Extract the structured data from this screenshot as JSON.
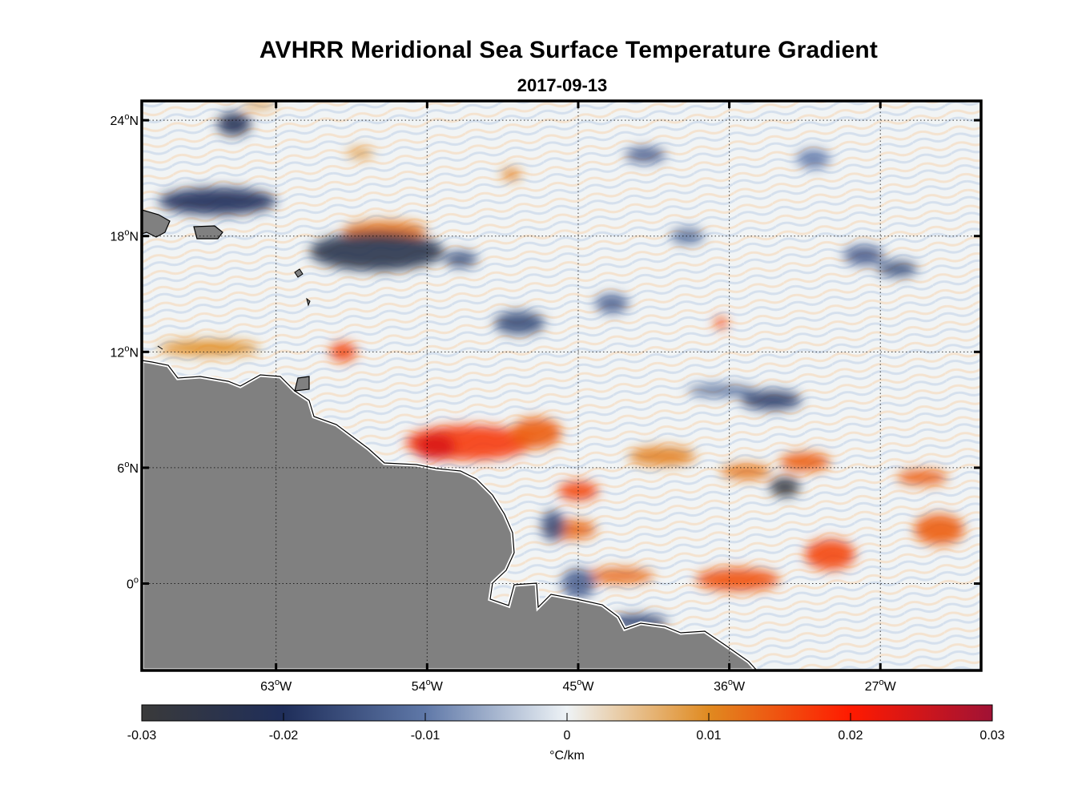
{
  "title": "AVHRR Meridional Sea Surface Temperature Gradient",
  "subtitle": "2017-09-13",
  "map": {
    "lon_range": [
      -71,
      -21
    ],
    "lat_range": [
      -4.5,
      25
    ],
    "lat_ticks": [
      {
        "value": 24,
        "label": "24",
        "hemi": "N"
      },
      {
        "value": 18,
        "label": "18",
        "hemi": "N"
      },
      {
        "value": 12,
        "label": "12",
        "hemi": "N"
      },
      {
        "value": 6,
        "label": "6",
        "hemi": "N"
      },
      {
        "value": 0,
        "label": "0",
        "hemi": ""
      }
    ],
    "lon_ticks": [
      {
        "value": -63,
        "label": "63",
        "hemi": "W"
      },
      {
        "value": -54,
        "label": "54",
        "hemi": "W"
      },
      {
        "value": -45,
        "label": "45",
        "hemi": "W"
      },
      {
        "value": -36,
        "label": "36",
        "hemi": "W"
      },
      {
        "value": -27,
        "label": "27",
        "hemi": "W"
      }
    ],
    "degree_symbol": "o",
    "land_color": "#808080",
    "grid": true
  },
  "colorbar": {
    "min": -0.03,
    "max": 0.03,
    "ticks": [
      "-0.03",
      "-0.02",
      "-0.01",
      "0",
      "0.01",
      "0.02",
      "0.03"
    ],
    "unit_label": "°C/km",
    "colors": [
      "#3a3a3a",
      "#1f2e5a",
      "#5f78a8",
      "#eef3f6",
      "#e08a20",
      "#ff1a00",
      "#a01235"
    ]
  },
  "features": {
    "negative": [
      {
        "lon": -65.5,
        "lat": 23.8,
        "rx": 1.0,
        "ry": 0.6,
        "v": -0.022
      },
      {
        "lon": -66.5,
        "lat": 19.8,
        "rx": 3.5,
        "ry": 0.7,
        "v": -0.02
      },
      {
        "lon": -57.0,
        "lat": 17.2,
        "rx": 4.0,
        "ry": 1.0,
        "v": -0.024
      },
      {
        "lon": -52.0,
        "lat": 16.8,
        "rx": 1.0,
        "ry": 0.4,
        "v": -0.016
      },
      {
        "lon": -48.5,
        "lat": 13.5,
        "rx": 1.5,
        "ry": 0.6,
        "v": -0.016
      },
      {
        "lon": -43.0,
        "lat": 14.5,
        "rx": 1.0,
        "ry": 0.5,
        "v": -0.013
      },
      {
        "lon": -41.0,
        "lat": 22.2,
        "rx": 1.2,
        "ry": 0.4,
        "v": -0.014
      },
      {
        "lon": -33.5,
        "lat": 9.5,
        "rx": 1.8,
        "ry": 0.5,
        "v": -0.018
      },
      {
        "lon": -36.5,
        "lat": 10.0,
        "rx": 2.0,
        "ry": 0.3,
        "v": -0.012
      },
      {
        "lon": -32.7,
        "lat": 5.0,
        "rx": 0.9,
        "ry": 0.5,
        "v": -0.028
      },
      {
        "lon": -26.0,
        "lat": 16.3,
        "rx": 1.2,
        "ry": 0.4,
        "v": -0.016
      },
      {
        "lon": -28.0,
        "lat": 17.0,
        "rx": 1.2,
        "ry": 0.5,
        "v": -0.014
      },
      {
        "lon": -46.5,
        "lat": 3.0,
        "rx": 0.7,
        "ry": 0.8,
        "v": -0.015
      },
      {
        "lon": -45.0,
        "lat": 0.0,
        "rx": 1.0,
        "ry": 0.8,
        "v": -0.013
      },
      {
        "lon": -41.5,
        "lat": -2.0,
        "rx": 1.8,
        "ry": 0.4,
        "v": -0.017
      },
      {
        "lon": -38.5,
        "lat": 18.0,
        "rx": 1.0,
        "ry": 0.4,
        "v": -0.012
      },
      {
        "lon": -31.0,
        "lat": 22.0,
        "rx": 1.0,
        "ry": 0.5,
        "v": -0.01
      }
    ],
    "positive": [
      {
        "lon": -56.5,
        "lat": 18.3,
        "rx": 2.5,
        "ry": 0.5,
        "v": 0.012
      },
      {
        "lon": -67.0,
        "lat": 12.2,
        "rx": 3.0,
        "ry": 0.4,
        "v": 0.01
      },
      {
        "lon": -59.0,
        "lat": 12.0,
        "rx": 0.8,
        "ry": 0.5,
        "v": 0.016
      },
      {
        "lon": -51.5,
        "lat": 7.3,
        "rx": 3.8,
        "ry": 0.9,
        "v": 0.017
      },
      {
        "lon": -53.5,
        "lat": 7.1,
        "rx": 1.2,
        "ry": 0.7,
        "v": 0.024
      },
      {
        "lon": -47.5,
        "lat": 7.8,
        "rx": 1.5,
        "ry": 0.8,
        "v": 0.014
      },
      {
        "lon": -45.0,
        "lat": 4.8,
        "rx": 1.2,
        "ry": 0.5,
        "v": 0.016
      },
      {
        "lon": -45.5,
        "lat": 2.8,
        "rx": 1.6,
        "ry": 0.5,
        "v": 0.013
      },
      {
        "lon": -42.5,
        "lat": 0.4,
        "rx": 2.0,
        "ry": 0.4,
        "v": 0.013
      },
      {
        "lon": -40.0,
        "lat": 6.6,
        "rx": 2.0,
        "ry": 0.5,
        "v": 0.011
      },
      {
        "lon": -35.5,
        "lat": 0.2,
        "rx": 2.5,
        "ry": 0.6,
        "v": 0.015
      },
      {
        "lon": -30.0,
        "lat": 1.5,
        "rx": 1.5,
        "ry": 0.8,
        "v": 0.016
      },
      {
        "lon": -31.5,
        "lat": 6.3,
        "rx": 1.5,
        "ry": 0.5,
        "v": 0.014
      },
      {
        "lon": -23.5,
        "lat": 2.8,
        "rx": 1.5,
        "ry": 0.8,
        "v": 0.014
      },
      {
        "lon": -24.5,
        "lat": 5.5,
        "rx": 1.5,
        "ry": 0.4,
        "v": 0.014
      },
      {
        "lon": -35.0,
        "lat": 5.8,
        "rx": 1.5,
        "ry": 0.4,
        "v": 0.012
      },
      {
        "lon": -36.5,
        "lat": 13.5,
        "rx": 0.4,
        "ry": 0.3,
        "v": 0.016
      },
      {
        "lon": -49.0,
        "lat": 21.2,
        "rx": 0.6,
        "ry": 0.3,
        "v": 0.011
      },
      {
        "lon": -64.0,
        "lat": 24.8,
        "rx": 1.0,
        "ry": 0.2,
        "v": 0.009
      },
      {
        "lon": -58.0,
        "lat": 22.3,
        "rx": 0.8,
        "ry": 0.3,
        "v": 0.008
      }
    ]
  }
}
